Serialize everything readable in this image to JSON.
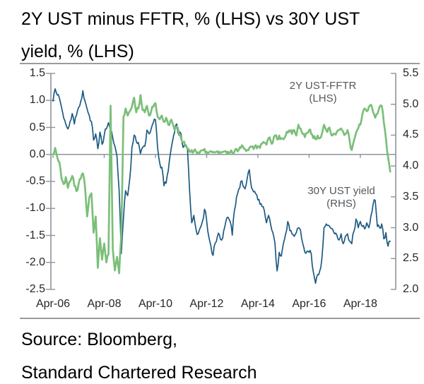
{
  "title": {
    "line1": "2Y UST minus FFTR, % (LHS) vs 30Y UST",
    "line2": "yield, % (LHS)"
  },
  "source": {
    "line1": "Source: Bloomberg,",
    "line2": "Standard Chartered Research"
  },
  "colors": {
    "green_series": "#7bbf79",
    "blue_series": "#1d5a82",
    "axis": "#8c949b",
    "divider": "#9c9c9c",
    "tick_text": "#262626",
    "annotation_text": "#54595d"
  },
  "chart_data": {
    "type": "line",
    "x_unit": "monthly",
    "x_range": [
      "Apr-2006",
      "Jun-2019"
    ],
    "x_tick_labels": [
      "Apr-06",
      "Apr-08",
      "Apr-10",
      "Apr-12",
      "Apr-14",
      "Apr-16",
      "Apr-18"
    ],
    "left_axis": {
      "min": -2.5,
      "max": 1.5,
      "tick_step": 0.5,
      "ticks": [
        "1.5",
        "1.0",
        "0.5",
        "0.0",
        "-0.5",
        "-1.0",
        "-1.5",
        "-2.0",
        "-2.5"
      ]
    },
    "right_axis": {
      "min": 2.0,
      "max": 5.5,
      "tick_step": 0.5,
      "ticks": [
        "5.5",
        "5.0",
        "4.5",
        "4.0",
        "3.5",
        "3.0",
        "2.5",
        "2.0"
      ]
    },
    "zero_gridline": true,
    "legend_position": "annotations-inside-plot",
    "series": [
      {
        "name": "2Y UST-FFTR (LHS)",
        "axis": "left",
        "color": "#7bbf79",
        "label": {
          "line1": "2Y UST-FFTR",
          "line2": "(LHS)"
        },
        "values": [
          0.0,
          0.12,
          -0.05,
          -0.15,
          -0.45,
          -0.55,
          -0.42,
          -0.62,
          -0.5,
          -0.4,
          -0.58,
          -0.68,
          -0.55,
          -0.45,
          -0.35,
          -0.6,
          -1.15,
          -0.8,
          -0.72,
          -1.45,
          -1.15,
          -2.1,
          -1.55,
          -1.95,
          -1.65,
          -2.0,
          -1.85,
          0.9,
          -1.75,
          -2.15,
          -1.9,
          -2.2,
          -1.5,
          0.7,
          0.85,
          0.72,
          0.8,
          0.88,
          1.05,
          0.78,
          0.85,
          1.1,
          0.82,
          0.78,
          0.9,
          0.72,
          0.8,
          0.88,
          0.95,
          0.7,
          0.65,
          0.72,
          0.6,
          0.68,
          0.55,
          0.62,
          0.58,
          0.45,
          0.52,
          0.38,
          0.3,
          0.22,
          0.15,
          0.1,
          0.05,
          0.08,
          0.06,
          0.05,
          0.04,
          0.06,
          0.08,
          0.1,
          0.05,
          0.04,
          0.06,
          0.05,
          0.04,
          0.06,
          0.05,
          0.04,
          0.05,
          0.06,
          0.05,
          0.04,
          0.03,
          0.05,
          0.1,
          0.08,
          0.12,
          0.15,
          0.1,
          0.08,
          0.12,
          0.14,
          0.1,
          0.17,
          0.15,
          0.12,
          0.2,
          0.22,
          0.18,
          0.3,
          0.25,
          0.22,
          0.35,
          0.28,
          0.35,
          0.3,
          0.28,
          0.35,
          0.4,
          0.42,
          0.38,
          0.45,
          0.35,
          0.55,
          0.48,
          0.38,
          0.32,
          0.4,
          0.45,
          0.38,
          0.3,
          0.28,
          0.35,
          0.3,
          0.38,
          0.55,
          0.45,
          0.48,
          0.42,
          0.35,
          0.38,
          0.42,
          0.45,
          0.48,
          0.42,
          0.38,
          0.45,
          0.25,
          0.08,
          0.25,
          0.4,
          0.48,
          0.55,
          0.75,
          0.85,
          0.8,
          0.88,
          0.92,
          0.78,
          0.68,
          0.75,
          0.88,
          0.9,
          0.6,
          0.3,
          -0.05,
          -0.32
        ]
      },
      {
        "name": "30Y UST yield (RHS)",
        "axis": "right",
        "color": "#1d5a82",
        "label": {
          "line1": "30Y UST yield",
          "line2": "(RHS)"
        },
        "values": [
          5.05,
          5.25,
          5.15,
          5.1,
          4.95,
          4.78,
          4.68,
          4.6,
          4.72,
          4.85,
          4.68,
          4.82,
          4.95,
          5.05,
          5.22,
          5.05,
          4.92,
          4.82,
          4.72,
          4.42,
          4.52,
          4.28,
          4.55,
          4.35,
          4.5,
          4.6,
          4.7,
          4.58,
          4.45,
          4.32,
          4.15,
          3.6,
          2.58,
          3.15,
          3.6,
          3.52,
          3.8,
          4.3,
          4.5,
          4.4,
          4.38,
          4.2,
          4.3,
          4.32,
          4.58,
          4.52,
          4.6,
          4.7,
          4.75,
          4.3,
          4.05,
          3.98,
          3.68,
          3.72,
          3.92,
          4.2,
          4.4,
          4.55,
          4.68,
          4.5,
          4.52,
          4.3,
          4.35,
          4.28,
          3.6,
          3.08,
          3.2,
          2.98,
          2.9,
          3.0,
          3.1,
          3.3,
          3.12,
          2.85,
          2.7,
          2.55,
          2.75,
          2.85,
          2.88,
          2.8,
          2.95,
          3.1,
          3.17,
          3.1,
          2.88,
          3.28,
          3.5,
          3.62,
          3.75,
          3.68,
          3.63,
          3.8,
          3.94,
          3.65,
          3.58,
          3.55,
          3.45,
          3.38,
          3.34,
          3.28,
          3.08,
          3.2,
          3.05,
          2.92,
          2.75,
          2.3,
          2.6,
          2.54,
          2.75,
          2.9,
          3.1,
          2.95,
          2.9,
          2.86,
          2.92,
          3.0,
          2.96,
          2.75,
          2.6,
          2.62,
          2.6,
          2.58,
          2.28,
          2.1,
          2.24,
          2.3,
          2.5,
          3.0,
          3.06,
          3.04,
          3.0,
          2.98,
          2.9,
          2.88,
          2.8,
          2.9,
          2.74,
          2.86,
          2.9,
          2.78,
          2.74,
          2.94,
          3.14,
          3.0,
          3.1,
          3.02,
          2.98,
          3.08,
          3.0,
          3.2,
          3.38,
          3.44,
          3.02,
          3.0,
          3.06,
          2.82,
          2.92,
          2.7,
          2.78
        ]
      }
    ]
  }
}
